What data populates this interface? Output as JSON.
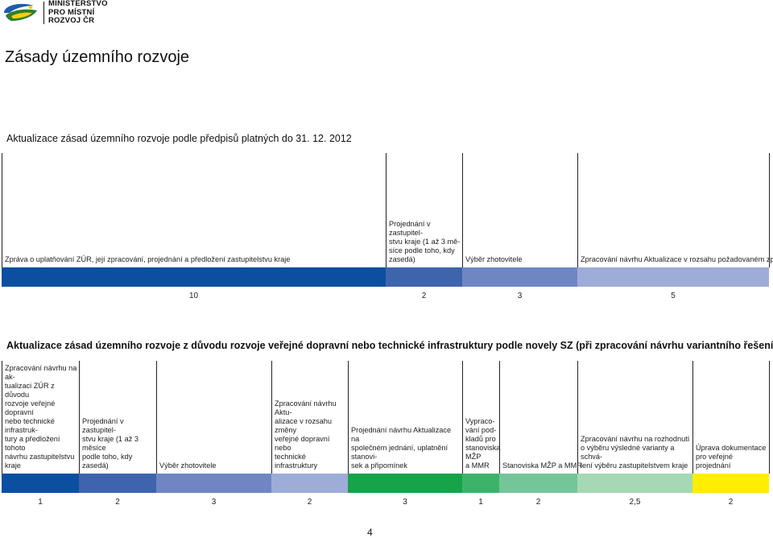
{
  "header": {
    "logo_icon": "ministry-logo-icon",
    "ministry_name": [
      "MINISTERSTVO",
      "PRO MÍSTNÍ",
      "ROZVOJ ČR"
    ]
  },
  "document": {
    "title": "Zásady územního rozvoje",
    "page_number": "4"
  },
  "section1": {
    "title": "Aktualizace zásad územního rozvoje podle předpisů platných do 31. 12. 2012",
    "steps": [
      {
        "text": "Zpráva o uplatňování ZÚR, její zpracování, projednání a předložení zastupitelstvu kraje",
        "duration": "10",
        "color": "#0b4fa0"
      },
      {
        "text": "Projednání v zastupitel-\nstvu kraje (1 až 3 mě-\nsíce podle toho, kdy\nzasedá)",
        "duration": "2",
        "color": "#3e64ae"
      },
      {
        "text": "Výběr zhotovitele",
        "duration": "3",
        "color": "#6f86c3"
      },
      {
        "text": "Zpracování návrhu Aktualizace v rozsahu požadovaném zprávou",
        "duration": "5",
        "color": "#9eacd8"
      }
    ]
  },
  "section2": {
    "title": "Aktualizace zásad územního rozvoje z důvodu rozvoje veřejné dopravní nebo technické infrastruktury podle novely SZ (při zpracování návrhu variantního řešení)",
    "steps": [
      {
        "text": "Zpracování návrhu na ak-\ntualizaci ZÚR z důvodu\nrozvoje veřejné dopravní\nnebo technické infrastruk-\ntury a předložení tohoto\nnávrhu zastupitelstvu\nkraje",
        "duration": "1",
        "color": "#0b4fa0"
      },
      {
        "text": "Projednání v zastupitel-\nstvu kraje (1 až 3 měsíce\npodle toho, kdy zasedá)",
        "duration": "2",
        "color": "#3e64ae"
      },
      {
        "text": "Výběr zhotovitele",
        "duration": "3",
        "color": "#6f86c3"
      },
      {
        "text": "Zpracování návrhu Aktu-\nalizace v rozsahu změny\nveřejné dopravní nebo\ntechnické infrastruktury",
        "duration": "2",
        "color": "#9eacd8"
      },
      {
        "text": "Projednání návrhu Aktualizace na\nspolečném jednání, uplatnění stanovi-\nsek a připomínek",
        "duration": "3",
        "color": "#16a34a"
      },
      {
        "text": "Vypraco-\nvání pod-\nkladů pro\nstanoviska\nMŽP\na MMR",
        "duration": "1",
        "color": "#3db36a"
      },
      {
        "text": "Stanoviska MŽP a MMR",
        "duration": "2",
        "color": "#74c69a"
      },
      {
        "text": "Zpracování návrhu na rozhodnutí\no výběru výsledné varianty a schvá-\nlení výběru zastupitelstvem kraje",
        "duration": "2,5",
        "color": "#a4d9b4"
      },
      {
        "text": "Úprava dokumentace\npro veřejné projednání",
        "duration": "2",
        "color": "#ffee00"
      }
    ]
  }
}
